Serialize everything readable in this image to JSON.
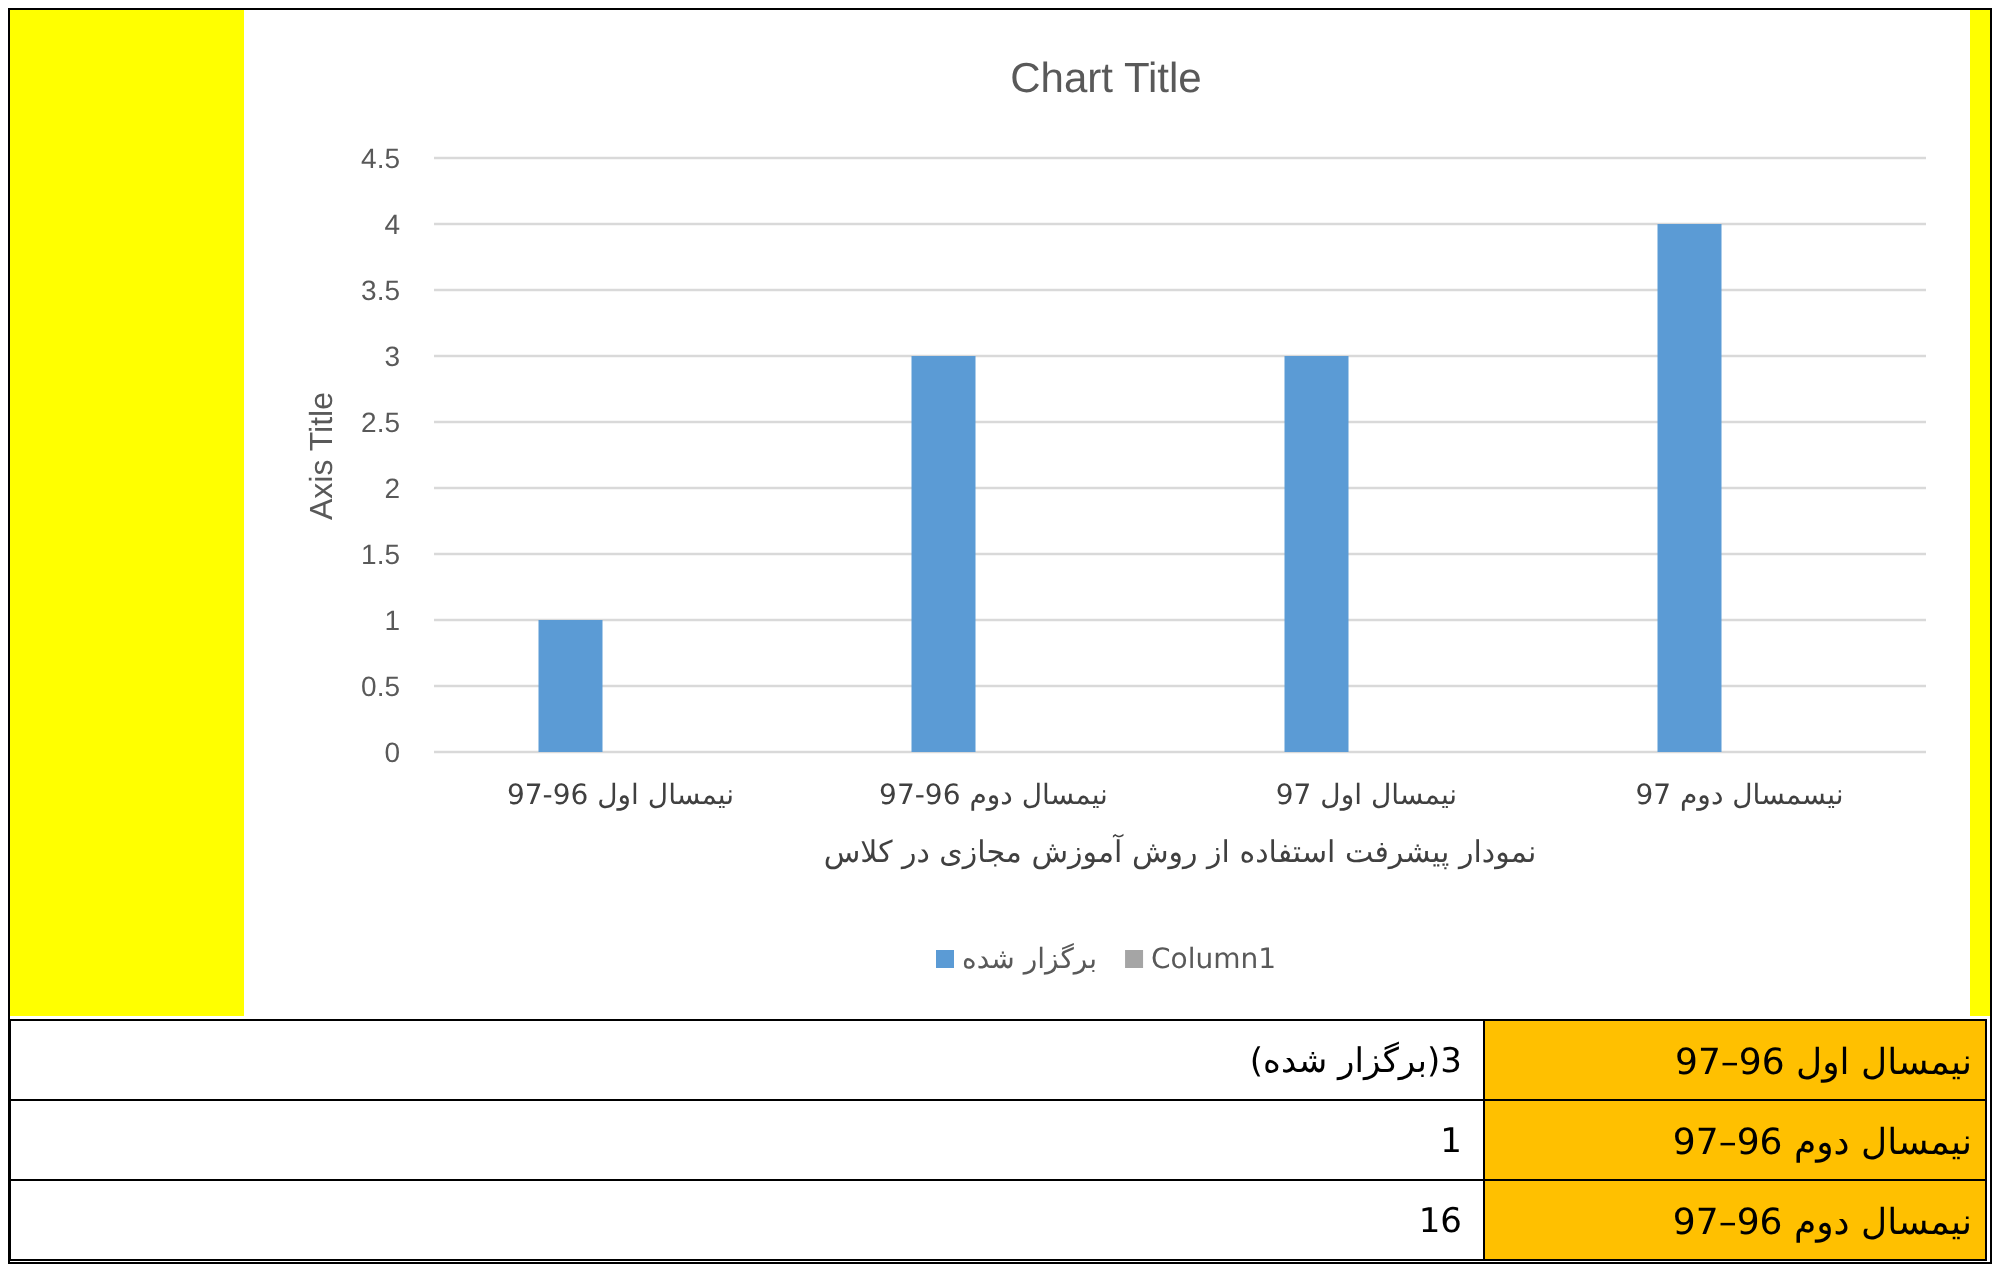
{
  "chart_data": [
    {
      "type": "bar",
      "title": "Chart Title",
      "xlabel": "نمودار پیشرفت استفاده از روش آموزش مجازی در کلاس",
      "ylabel": "Axis Title",
      "categories": [
        "نیمسال اول 96-97",
        "نیمسال دوم 96-97",
        "نیمسال اول 97",
        "نیسمسال دوم 97"
      ],
      "series": [
        {
          "name": "برگزار شده",
          "color": "#5b9bd5",
          "values": [
            1,
            3,
            3,
            4
          ]
        },
        {
          "name": "Column1",
          "color": "#a5a5a5",
          "values": [
            null,
            null,
            null,
            null
          ]
        }
      ],
      "ylim": [
        0,
        4.5
      ],
      "yticks": [
        0,
        0.5,
        1,
        1.5,
        2,
        2.5,
        3,
        3.5,
        4,
        4.5
      ],
      "grid": "y",
      "legend": "bottom"
    },
    {
      "type": "other",
      "annotations": [
        "نیمسال اول 96–97",
        "3(برگزار شده)",
        "نیمسال دوم 96–97",
        "1",
        "نیمسال دوم 96–97",
        "16"
      ]
    }
  ]
}
